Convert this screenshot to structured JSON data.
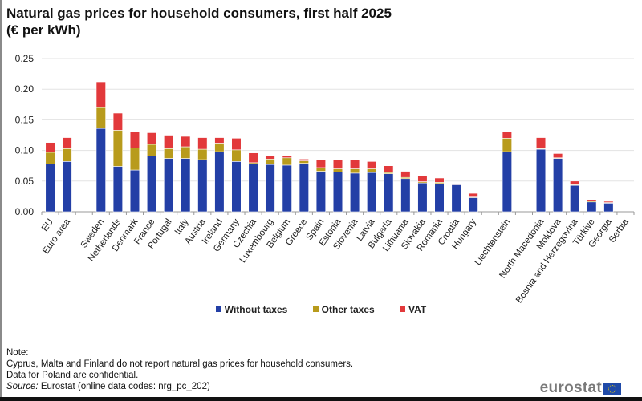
{
  "title_line1": "Natural gas prices for household consumers, first half 2025",
  "title_line2": "(€ per kWh)",
  "legend": [
    {
      "label": "Without taxes",
      "color": "#233fa6"
    },
    {
      "label": "Other taxes",
      "color": "#b89b1c"
    },
    {
      "label": "VAT",
      "color": "#e2393b"
    }
  ],
  "notes": {
    "heading": "Note:",
    "line1": "Cyprus, Malta and Finland do not report natural gas prices for household consumers.",
    "line2": "Data for Poland are confidential.",
    "source_label": "Source:",
    "source_text": " Eurostat (online data codes: nrg_pc_202)"
  },
  "logo": {
    "text": "eurostat",
    "icon": "eu-flag-icon"
  },
  "chart_data": {
    "type": "bar",
    "stacked": true,
    "title": "Natural gas prices for household consumers, first half 2025 (€ per kWh)",
    "xlabel": "",
    "ylabel": "€ per kWh",
    "ylim": [
      0,
      0.25
    ],
    "yticks": [
      "0.00",
      "0.05",
      "0.10",
      "0.15",
      "0.20",
      "0.25"
    ],
    "grid": true,
    "legend_position": "bottom",
    "categories": [
      "EU",
      "Euro area",
      "",
      "Sweden",
      "Netherlands",
      "Denmark",
      "France",
      "Portugal",
      "Italy",
      "Austria",
      "Ireland",
      "Germany",
      "Czechia",
      "Luxembourg",
      "Belgium",
      "Greece",
      "Spain",
      "Estonia",
      "Slovenia",
      "Latvia",
      "Bulgaria",
      "Lithuania",
      "Slovakia",
      "Romania",
      "Croatia",
      "Hungary",
      "",
      "Liechtenstein",
      "",
      "North Macedonia",
      "Moldova",
      "Bosnia and Herzegovina",
      "Türkiye",
      "Georgia",
      "Serbia"
    ],
    "series": [
      {
        "name": "Without taxes",
        "color": "#233fa6",
        "values": [
          0.078,
          0.082,
          null,
          0.136,
          0.074,
          0.068,
          0.091,
          0.087,
          0.087,
          0.085,
          0.098,
          0.082,
          0.078,
          0.077,
          0.076,
          0.079,
          0.066,
          0.065,
          0.063,
          0.064,
          0.062,
          0.054,
          0.047,
          0.046,
          0.044,
          0.023,
          null,
          0.098,
          null,
          0.102,
          0.087,
          0.043,
          0.016,
          0.014,
          null
        ]
      },
      {
        "name": "Other taxes",
        "color": "#b89b1c",
        "values": [
          0.019,
          0.021,
          null,
          0.034,
          0.059,
          0.036,
          0.019,
          0.016,
          0.019,
          0.017,
          0.014,
          0.019,
          0.002,
          0.009,
          0.012,
          0.004,
          0.006,
          0.005,
          0.007,
          0.006,
          0.002,
          0.002,
          0.002,
          0.002,
          0.0,
          0.001,
          null,
          0.022,
          null,
          0.001,
          0.001,
          0.001,
          0.002,
          0.001,
          null
        ]
      },
      {
        "name": "VAT",
        "color": "#e2393b",
        "values": [
          0.016,
          0.018,
          null,
          0.042,
          0.028,
          0.026,
          0.019,
          0.022,
          0.017,
          0.019,
          0.009,
          0.019,
          0.016,
          0.006,
          0.003,
          0.003,
          0.013,
          0.015,
          0.015,
          0.012,
          0.011,
          0.01,
          0.009,
          0.007,
          0.001,
          0.006,
          null,
          0.01,
          null,
          0.018,
          0.007,
          0.006,
          0.002,
          0.002,
          null
        ]
      }
    ]
  }
}
